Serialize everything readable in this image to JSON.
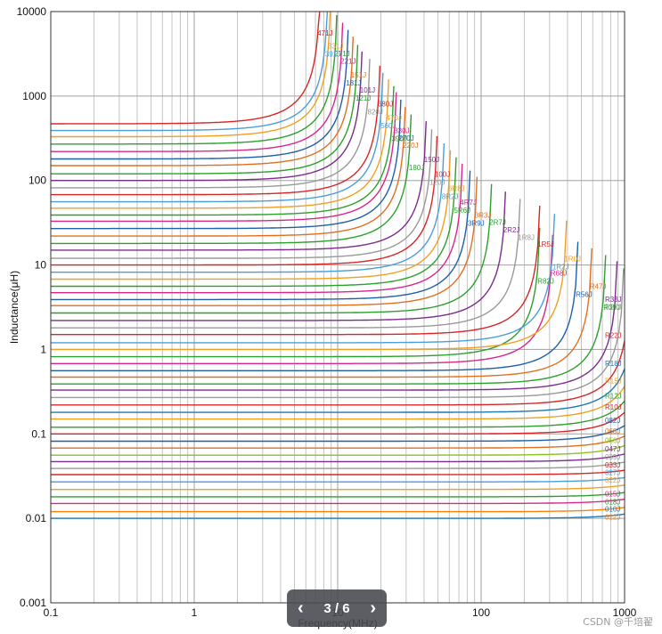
{
  "chart_data": {
    "type": "line",
    "xlabel": "Frequency(MHz)",
    "ylabel": "Inductance(μH)",
    "xscale": "log",
    "yscale": "log",
    "xlim": [
      0.1,
      1000
    ],
    "ylim": [
      0.001,
      10000
    ],
    "grid": true,
    "xticks": [
      "0.1",
      "1",
      "10",
      "100",
      "1000"
    ],
    "yticks": [
      "0.001",
      "0.01",
      "0.1",
      "1",
      "10",
      "100",
      "1000",
      "10000"
    ],
    "series": [
      {
        "name": "033J",
        "L": 0.033,
        "srf": 3000,
        "color": "#d62728"
      },
      {
        "name": "010J",
        "L": 0.01,
        "srf": 3000,
        "color": "#1f77b4"
      },
      {
        "name": "012J",
        "L": 0.012,
        "srf": 3000,
        "color": "#ff7f0e"
      },
      {
        "name": "015J",
        "L": 0.015,
        "srf": 3000,
        "color": "#d6278a"
      },
      {
        "name": "018J",
        "L": 0.018,
        "srf": 3000,
        "color": "#2ca02c"
      },
      {
        "name": "022J",
        "L": 0.022,
        "srf": 3000,
        "color": "#f0a020"
      },
      {
        "name": "027J",
        "L": 0.027,
        "srf": 3000,
        "color": "#4c9ed9"
      },
      {
        "name": "039J",
        "L": 0.039,
        "srf": 2500,
        "color": "#999999"
      },
      {
        "name": "047J",
        "L": 0.047,
        "srf": 2300,
        "color": "#7b2d8b"
      },
      {
        "name": "056J",
        "L": 0.056,
        "srf": 2100,
        "color": "#8cbf26"
      },
      {
        "name": "068J",
        "L": 0.068,
        "srf": 1900,
        "color": "#e07020"
      },
      {
        "name": "082J",
        "L": 0.082,
        "srf": 1700,
        "color": "#1f5fa8"
      },
      {
        "name": "R10J",
        "L": 0.1,
        "srf": 1500,
        "color": "#d62728"
      },
      {
        "name": "R12J",
        "L": 0.12,
        "srf": 1400,
        "color": "#2ca02c"
      },
      {
        "name": "R15J",
        "L": 0.15,
        "srf": 1300,
        "color": "#f0a020"
      },
      {
        "name": "R18J",
        "L": 0.18,
        "srf": 1200,
        "color": "#1f77b4"
      },
      {
        "name": "R22J",
        "L": 0.22,
        "srf": 1100,
        "color": "#d62728"
      },
      {
        "name": "R27J",
        "L": 0.27,
        "srf": 1000,
        "color": "#999999"
      },
      {
        "name": "R33J",
        "L": 0.33,
        "srf": 900,
        "color": "#7b2d8b"
      },
      {
        "name": "R39J",
        "L": 0.39,
        "srf": 750,
        "color": "#2ca02c"
      },
      {
        "name": "R47J",
        "L": 0.47,
        "srf": 600,
        "color": "#e07020"
      },
      {
        "name": "R56J",
        "L": 0.56,
        "srf": 480,
        "color": "#1f5fa8"
      },
      {
        "name": "R68J",
        "L": 0.68,
        "srf": 320,
        "color": "#d6278a"
      },
      {
        "name": "R82J",
        "L": 0.82,
        "srf": 260,
        "color": "#2ca02c"
      },
      {
        "name": "1R0J",
        "L": 1.0,
        "srf": 400,
        "color": "#f0a020"
      },
      {
        "name": "1R2J",
        "L": 1.2,
        "srf": 330,
        "color": "#4c9ed9"
      },
      {
        "name": "1R5J",
        "L": 1.5,
        "srf": 260,
        "color": "#d62728"
      },
      {
        "name": "1R8J",
        "L": 1.8,
        "srf": 190,
        "color": "#999999"
      },
      {
        "name": "2R2J",
        "L": 2.2,
        "srf": 150,
        "color": "#7b2d8b"
      },
      {
        "name": "2R7J",
        "L": 2.7,
        "srf": 120,
        "color": "#2ca02c"
      },
      {
        "name": "3R3J",
        "L": 3.3,
        "srf": 95,
        "color": "#e07020"
      },
      {
        "name": "3R9J",
        "L": 3.9,
        "srf": 85,
        "color": "#1f5fa8"
      },
      {
        "name": "4R7J",
        "L": 4.7,
        "srf": 75,
        "color": "#d6278a"
      },
      {
        "name": "5R6J",
        "L": 5.6,
        "srf": 68,
        "color": "#2ca02c"
      },
      {
        "name": "6R8J",
        "L": 6.8,
        "srf": 62,
        "color": "#f0a020"
      },
      {
        "name": "8R2J",
        "L": 8.2,
        "srf": 56,
        "color": "#4c9ed9"
      },
      {
        "name": "100J",
        "L": 10,
        "srf": 50,
        "color": "#d62728"
      },
      {
        "name": "120J",
        "L": 12,
        "srf": 46,
        "color": "#999999"
      },
      {
        "name": "150J",
        "L": 15,
        "srf": 42,
        "color": "#7b2d8b"
      },
      {
        "name": "180J",
        "L": 18,
        "srf": 33,
        "color": "#2ca02c"
      },
      {
        "name": "220J",
        "L": 22,
        "srf": 30,
        "color": "#e07020"
      },
      {
        "name": "270J",
        "L": 27,
        "srf": 28,
        "color": "#1f5fa8"
      },
      {
        "name": "330J",
        "L": 33,
        "srf": 26,
        "color": "#d6278a"
      },
      {
        "name": "390J",
        "L": 39,
        "srf": 25,
        "color": "#2ca02c"
      },
      {
        "name": "470J",
        "L": 47,
        "srf": 23,
        "color": "#f0a020"
      },
      {
        "name": "560J",
        "L": 56,
        "srf": 21,
        "color": "#4c9ed9"
      },
      {
        "name": "680J",
        "L": 68,
        "srf": 20,
        "color": "#d62728"
      },
      {
        "name": "820J",
        "L": 82,
        "srf": 17,
        "color": "#999999"
      },
      {
        "name": "101J",
        "L": 100,
        "srf": 15,
        "color": "#7b2d8b"
      },
      {
        "name": "121J",
        "L": 120,
        "srf": 14,
        "color": "#2ca02c"
      },
      {
        "name": "151J",
        "L": 150,
        "srf": 13,
        "color": "#e07020"
      },
      {
        "name": "181J",
        "L": 180,
        "srf": 12,
        "color": "#1f5fa8"
      },
      {
        "name": "221J",
        "L": 220,
        "srf": 11,
        "color": "#d6278a"
      },
      {
        "name": "271J",
        "L": 270,
        "srf": 10,
        "color": "#2ca02c"
      },
      {
        "name": "331J",
        "L": 330,
        "srf": 9,
        "color": "#f0a020"
      },
      {
        "name": "391J",
        "L": 390,
        "srf": 8.6,
        "color": "#4c9ed9"
      },
      {
        "name": "471J",
        "L": 470,
        "srf": 7.6,
        "color": "#d62728"
      }
    ]
  },
  "pager": {
    "prev_icon": "‹",
    "current": "3 / 6",
    "next_icon": "›"
  },
  "watermark": "CSDN @千培翟"
}
